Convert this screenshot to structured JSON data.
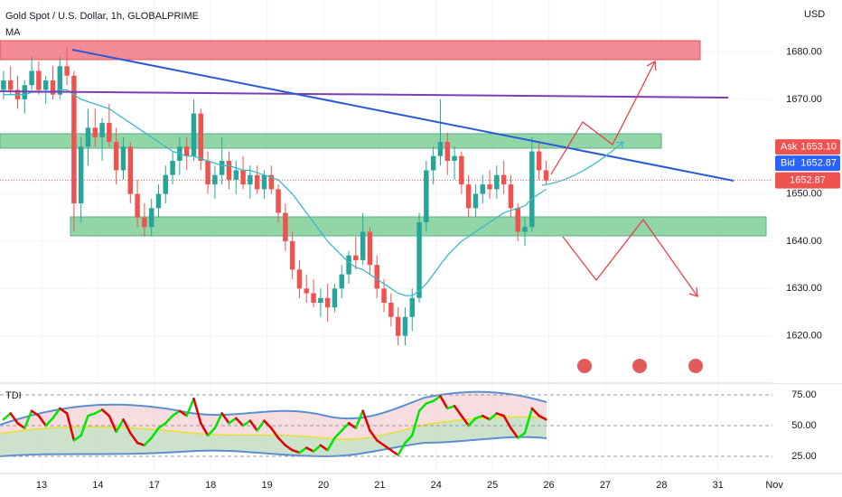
{
  "header": {
    "title": "Gold Spot / U.S. Dollar, 1h, GLOBALPRIME",
    "indicator": "MA",
    "currency": "USD"
  },
  "chart_data": [
    {
      "type": "candlestick",
      "up_color": "#26a69a",
      "down_color": "#ef5350",
      "ma_color": "#3bb8c8",
      "ylim": [
        1610,
        1691
      ],
      "yticks": [
        {
          "value": 1620,
          "label": "1620.00"
        },
        {
          "value": 1630,
          "label": "1630.00"
        },
        {
          "value": 1640,
          "label": "1640.00"
        },
        {
          "value": 1650,
          "label": "1650.00"
        },
        {
          "value": 1670,
          "label": "1670.00"
        },
        {
          "value": 1680,
          "label": "1680.00"
        }
      ],
      "xlim": [
        -0.5,
        119
      ],
      "xticks": [
        {
          "value": 5.4,
          "label": "13"
        },
        {
          "value": 13.4,
          "label": "14"
        },
        {
          "value": 21.4,
          "label": "17"
        },
        {
          "value": 29.4,
          "label": "18"
        },
        {
          "value": 37.4,
          "label": "19"
        },
        {
          "value": 45.4,
          "label": "20"
        },
        {
          "value": 53.4,
          "label": "21"
        },
        {
          "value": 61.4,
          "label": "24"
        },
        {
          "value": 69.4,
          "label": "25"
        },
        {
          "value": 77.4,
          "label": "26"
        },
        {
          "value": 85.4,
          "label": "27"
        },
        {
          "value": 93.4,
          "label": "28"
        },
        {
          "value": 101.4,
          "label": "31"
        },
        {
          "value": 109.4,
          "label": "Nov"
        }
      ],
      "grid": true,
      "ask": {
        "name": "Ask",
        "value": 1653.1,
        "label": "1653.10"
      },
      "bid": {
        "name": "Bid",
        "value": 1652.87
      },
      "last": 1652.87,
      "ohlc": [
        [
          1672,
          1676,
          1670,
          1674
        ],
        [
          1674,
          1677,
          1671,
          1672
        ],
        [
          1672,
          1675,
          1668,
          1670
        ],
        [
          1670,
          1674,
          1667,
          1673
        ],
        [
          1673,
          1679,
          1672,
          1676
        ],
        [
          1676,
          1678,
          1671,
          1672
        ],
        [
          1672,
          1675,
          1669,
          1674
        ],
        [
          1674,
          1677,
          1670,
          1671
        ],
        [
          1671,
          1679,
          1670,
          1677
        ],
        [
          1677,
          1681,
          1673,
          1675
        ],
        [
          1675,
          1676,
          1642,
          1648
        ],
        [
          1648,
          1662,
          1644,
          1660
        ],
        [
          1660,
          1668,
          1656,
          1664
        ],
        [
          1664,
          1668,
          1660,
          1662
        ],
        [
          1662,
          1666,
          1657,
          1665
        ],
        [
          1665,
          1669,
          1660,
          1661
        ],
        [
          1661,
          1664,
          1652,
          1655
        ],
        [
          1655,
          1662,
          1653,
          1660
        ],
        [
          1660,
          1661,
          1648,
          1650
        ],
        [
          1650,
          1653,
          1643,
          1645
        ],
        [
          1645,
          1648,
          1641,
          1643
        ],
        [
          1643,
          1649,
          1641,
          1647
        ],
        [
          1647,
          1652,
          1645,
          1650
        ],
        [
          1650,
          1656,
          1648,
          1654
        ],
        [
          1654,
          1659,
          1652,
          1657
        ],
        [
          1657,
          1662,
          1654,
          1660
        ],
        [
          1660,
          1662,
          1655,
          1658
        ],
        [
          1658,
          1670,
          1657,
          1667
        ],
        [
          1667,
          1668,
          1655,
          1657
        ],
        [
          1657,
          1659,
          1650,
          1652
        ],
        [
          1652,
          1656,
          1649,
          1654
        ],
        [
          1654,
          1662,
          1652,
          1657
        ],
        [
          1657,
          1659,
          1651,
          1653
        ],
        [
          1653,
          1657,
          1650,
          1655
        ],
        [
          1655,
          1658,
          1651,
          1652
        ],
        [
          1652,
          1656,
          1649,
          1654
        ],
        [
          1654,
          1656,
          1650,
          1651
        ],
        [
          1651,
          1655,
          1649,
          1654
        ],
        [
          1654,
          1656,
          1650,
          1651
        ],
        [
          1651,
          1652,
          1644,
          1646
        ],
        [
          1646,
          1648,
          1638,
          1640
        ],
        [
          1640,
          1642,
          1632,
          1634
        ],
        [
          1634,
          1636,
          1628,
          1630
        ],
        [
          1630,
          1633,
          1627,
          1629
        ],
        [
          1629,
          1632,
          1626,
          1627
        ],
        [
          1627,
          1630,
          1624,
          1628
        ],
        [
          1628,
          1631,
          1623,
          1626
        ],
        [
          1626,
          1631,
          1625,
          1630
        ],
        [
          1630,
          1635,
          1628,
          1633
        ],
        [
          1633,
          1638,
          1631,
          1637
        ],
        [
          1637,
          1641,
          1634,
          1636
        ],
        [
          1636,
          1646,
          1635,
          1642
        ],
        [
          1642,
          1643,
          1633,
          1635
        ],
        [
          1635,
          1637,
          1628,
          1630
        ],
        [
          1630,
          1632,
          1625,
          1627
        ],
        [
          1627,
          1629,
          1622,
          1624
        ],
        [
          1624,
          1626,
          1618,
          1620
        ],
        [
          1620,
          1626,
          1618,
          1624
        ],
        [
          1624,
          1630,
          1621,
          1628
        ],
        [
          1628,
          1646,
          1627,
          1644
        ],
        [
          1644,
          1657,
          1642,
          1655
        ],
        [
          1655,
          1660,
          1652,
          1658
        ],
        [
          1658,
          1670,
          1656,
          1661
        ],
        [
          1661,
          1663,
          1654,
          1657
        ],
        [
          1657,
          1660,
          1653,
          1658
        ],
        [
          1658,
          1659,
          1650,
          1652
        ],
        [
          1652,
          1654,
          1645,
          1647
        ],
        [
          1647,
          1652,
          1645,
          1650
        ],
        [
          1650,
          1654,
          1648,
          1652
        ],
        [
          1652,
          1655,
          1649,
          1651
        ],
        [
          1651,
          1656,
          1649,
          1654
        ],
        [
          1654,
          1657,
          1650,
          1652
        ],
        [
          1652,
          1654,
          1645,
          1647
        ],
        [
          1647,
          1648,
          1640,
          1642
        ],
        [
          1642,
          1645,
          1639,
          1643
        ],
        [
          1643,
          1662,
          1642,
          1659
        ],
        [
          1659,
          1661,
          1653,
          1655
        ],
        [
          1655,
          1657,
          1652,
          1652.87
        ]
      ],
      "ma": [
        1671,
        1671,
        1671,
        1671,
        1671.5,
        1671.5,
        1671.5,
        1671.5,
        1672,
        1672,
        1671,
        1670,
        1669.5,
        1669,
        1668.5,
        1668,
        1667,
        1666,
        1665,
        1664,
        1663,
        1662,
        1661,
        1660,
        1659,
        1658.5,
        1658,
        1658,
        1657.5,
        1657,
        1656.5,
        1656,
        1656,
        1655.5,
        1655,
        1655,
        1654.5,
        1654,
        1653.5,
        1653,
        1651.5,
        1650,
        1648,
        1646,
        1644,
        1642,
        1640,
        1638.5,
        1637,
        1635.5,
        1634.5,
        1634,
        1633,
        1632,
        1631,
        1630,
        1629,
        1628.5,
        1628.5,
        1629.5,
        1631,
        1633,
        1635,
        1637,
        1638.5,
        1640,
        1641,
        1642,
        1643,
        1644,
        1645,
        1646,
        1646.5,
        1647,
        1647.5,
        1649,
        1650,
        1651
      ]
    },
    {
      "type": "line",
      "title": "TDI",
      "up_color": "#00e600",
      "down_color": "#e00000",
      "ylim": [
        12.5,
        84.6
      ],
      "yticks": [
        {
          "value": 25,
          "label": "25.00"
        },
        {
          "value": 50,
          "label": "50.00"
        },
        {
          "value": 75,
          "label": "75.00"
        }
      ],
      "values": [
        55,
        60,
        52,
        48,
        62,
        58,
        50,
        56,
        64,
        60,
        38,
        42,
        58,
        60,
        63,
        58,
        45,
        55,
        44,
        36,
        34,
        40,
        48,
        52,
        58,
        62,
        58,
        72,
        52,
        42,
        48,
        60,
        52,
        56,
        50,
        54,
        46,
        54,
        48,
        40,
        34,
        30,
        28,
        32,
        29,
        34,
        30,
        40,
        46,
        52,
        48,
        62,
        46,
        38,
        34,
        30,
        26,
        36,
        42,
        62,
        68,
        70,
        74,
        64,
        66,
        58,
        50,
        56,
        58,
        55,
        60,
        58,
        48,
        40,
        44,
        64,
        58,
        55
      ]
    }
  ]
}
